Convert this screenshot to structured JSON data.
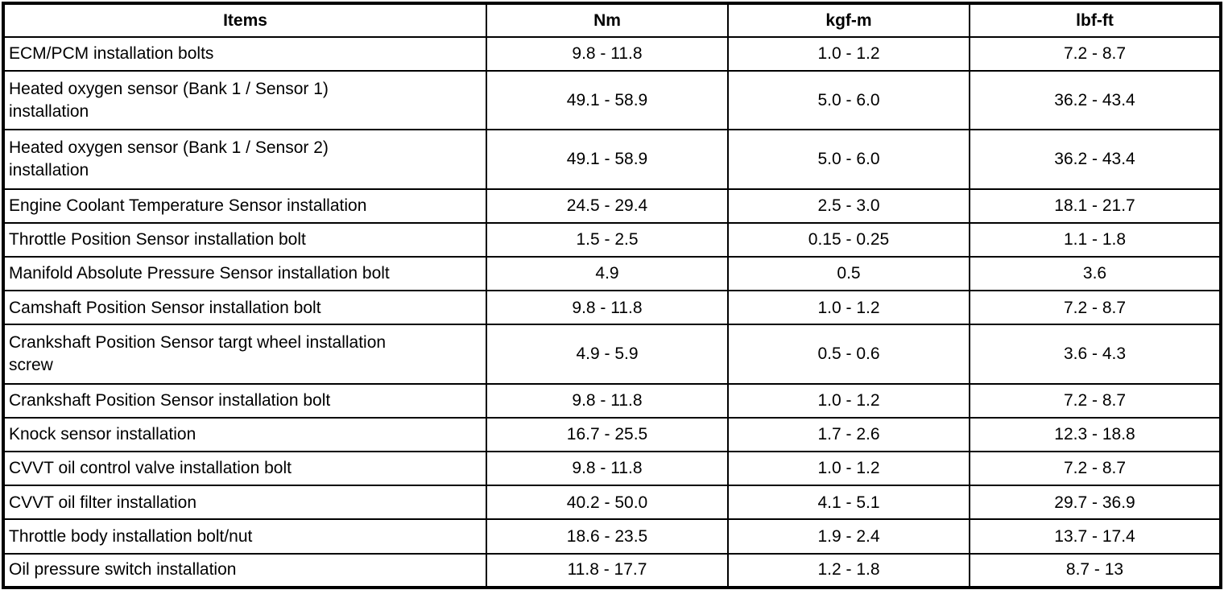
{
  "colors": {
    "border": "#000000",
    "background": "#ffffff",
    "text": "#000000"
  },
  "table": {
    "headers": {
      "items": "Items",
      "nm": "Nm",
      "kgfm": "kgf-m",
      "lbfft": "lbf-ft"
    },
    "rows": [
      {
        "item": "ECM/PCM installation bolts",
        "nm": "9.8 - 11.8",
        "kgfm": "1.0 - 1.2",
        "lbfft": "7.2 - 8.7"
      },
      {
        "item": "Heated oxygen sensor (Bank 1 / Sensor 1)\ninstallation",
        "nm": "49.1 - 58.9",
        "kgfm": "5.0 - 6.0",
        "lbfft": "36.2 - 43.4"
      },
      {
        "item": "Heated oxygen sensor (Bank 1 / Sensor 2)\ninstallation",
        "nm": "49.1 - 58.9",
        "kgfm": "5.0 - 6.0",
        "lbfft": "36.2 - 43.4"
      },
      {
        "item": "Engine Coolant Temperature Sensor installation",
        "nm": "24.5 - 29.4",
        "kgfm": "2.5 - 3.0",
        "lbfft": "18.1 - 21.7"
      },
      {
        "item": "Throttle Position Sensor installation bolt",
        "nm": "1.5 - 2.5",
        "kgfm": "0.15 - 0.25",
        "lbfft": "1.1 - 1.8"
      },
      {
        "item": "Manifold Absolute Pressure Sensor installation bolt",
        "nm": "4.9",
        "kgfm": "0.5",
        "lbfft": "3.6"
      },
      {
        "item": "Camshaft Position Sensor installation bolt",
        "nm": "9.8 - 11.8",
        "kgfm": "1.0 - 1.2",
        "lbfft": "7.2 - 8.7"
      },
      {
        "item": "Crankshaft Position Sensor targt wheel installation\nscrew",
        "nm": "4.9 - 5.9",
        "kgfm": "0.5 - 0.6",
        "lbfft": "3.6 - 4.3"
      },
      {
        "item": "Crankshaft Position Sensor installation bolt",
        "nm": "9.8 - 11.8",
        "kgfm": "1.0 - 1.2",
        "lbfft": "7.2 - 8.7"
      },
      {
        "item": "Knock sensor installation",
        "nm": "16.7 - 25.5",
        "kgfm": "1.7 - 2.6",
        "lbfft": "12.3 - 18.8"
      },
      {
        "item": "CVVT oil control valve installation bolt",
        "nm": "9.8 - 11.8",
        "kgfm": "1.0 - 1.2",
        "lbfft": "7.2 - 8.7"
      },
      {
        "item": "CVVT oil filter installation",
        "nm": "40.2 - 50.0",
        "kgfm": "4.1 - 5.1",
        "lbfft": "29.7 - 36.9"
      },
      {
        "item": "Throttle body installation bolt/nut",
        "nm": "18.6 - 23.5",
        "kgfm": "1.9 - 2.4",
        "lbfft": "13.7 - 17.4"
      },
      {
        "item": "Oil pressure switch installation",
        "nm": "11.8 - 17.7",
        "kgfm": "1.2 - 1.8",
        "lbfft": "8.7 - 13"
      }
    ]
  }
}
